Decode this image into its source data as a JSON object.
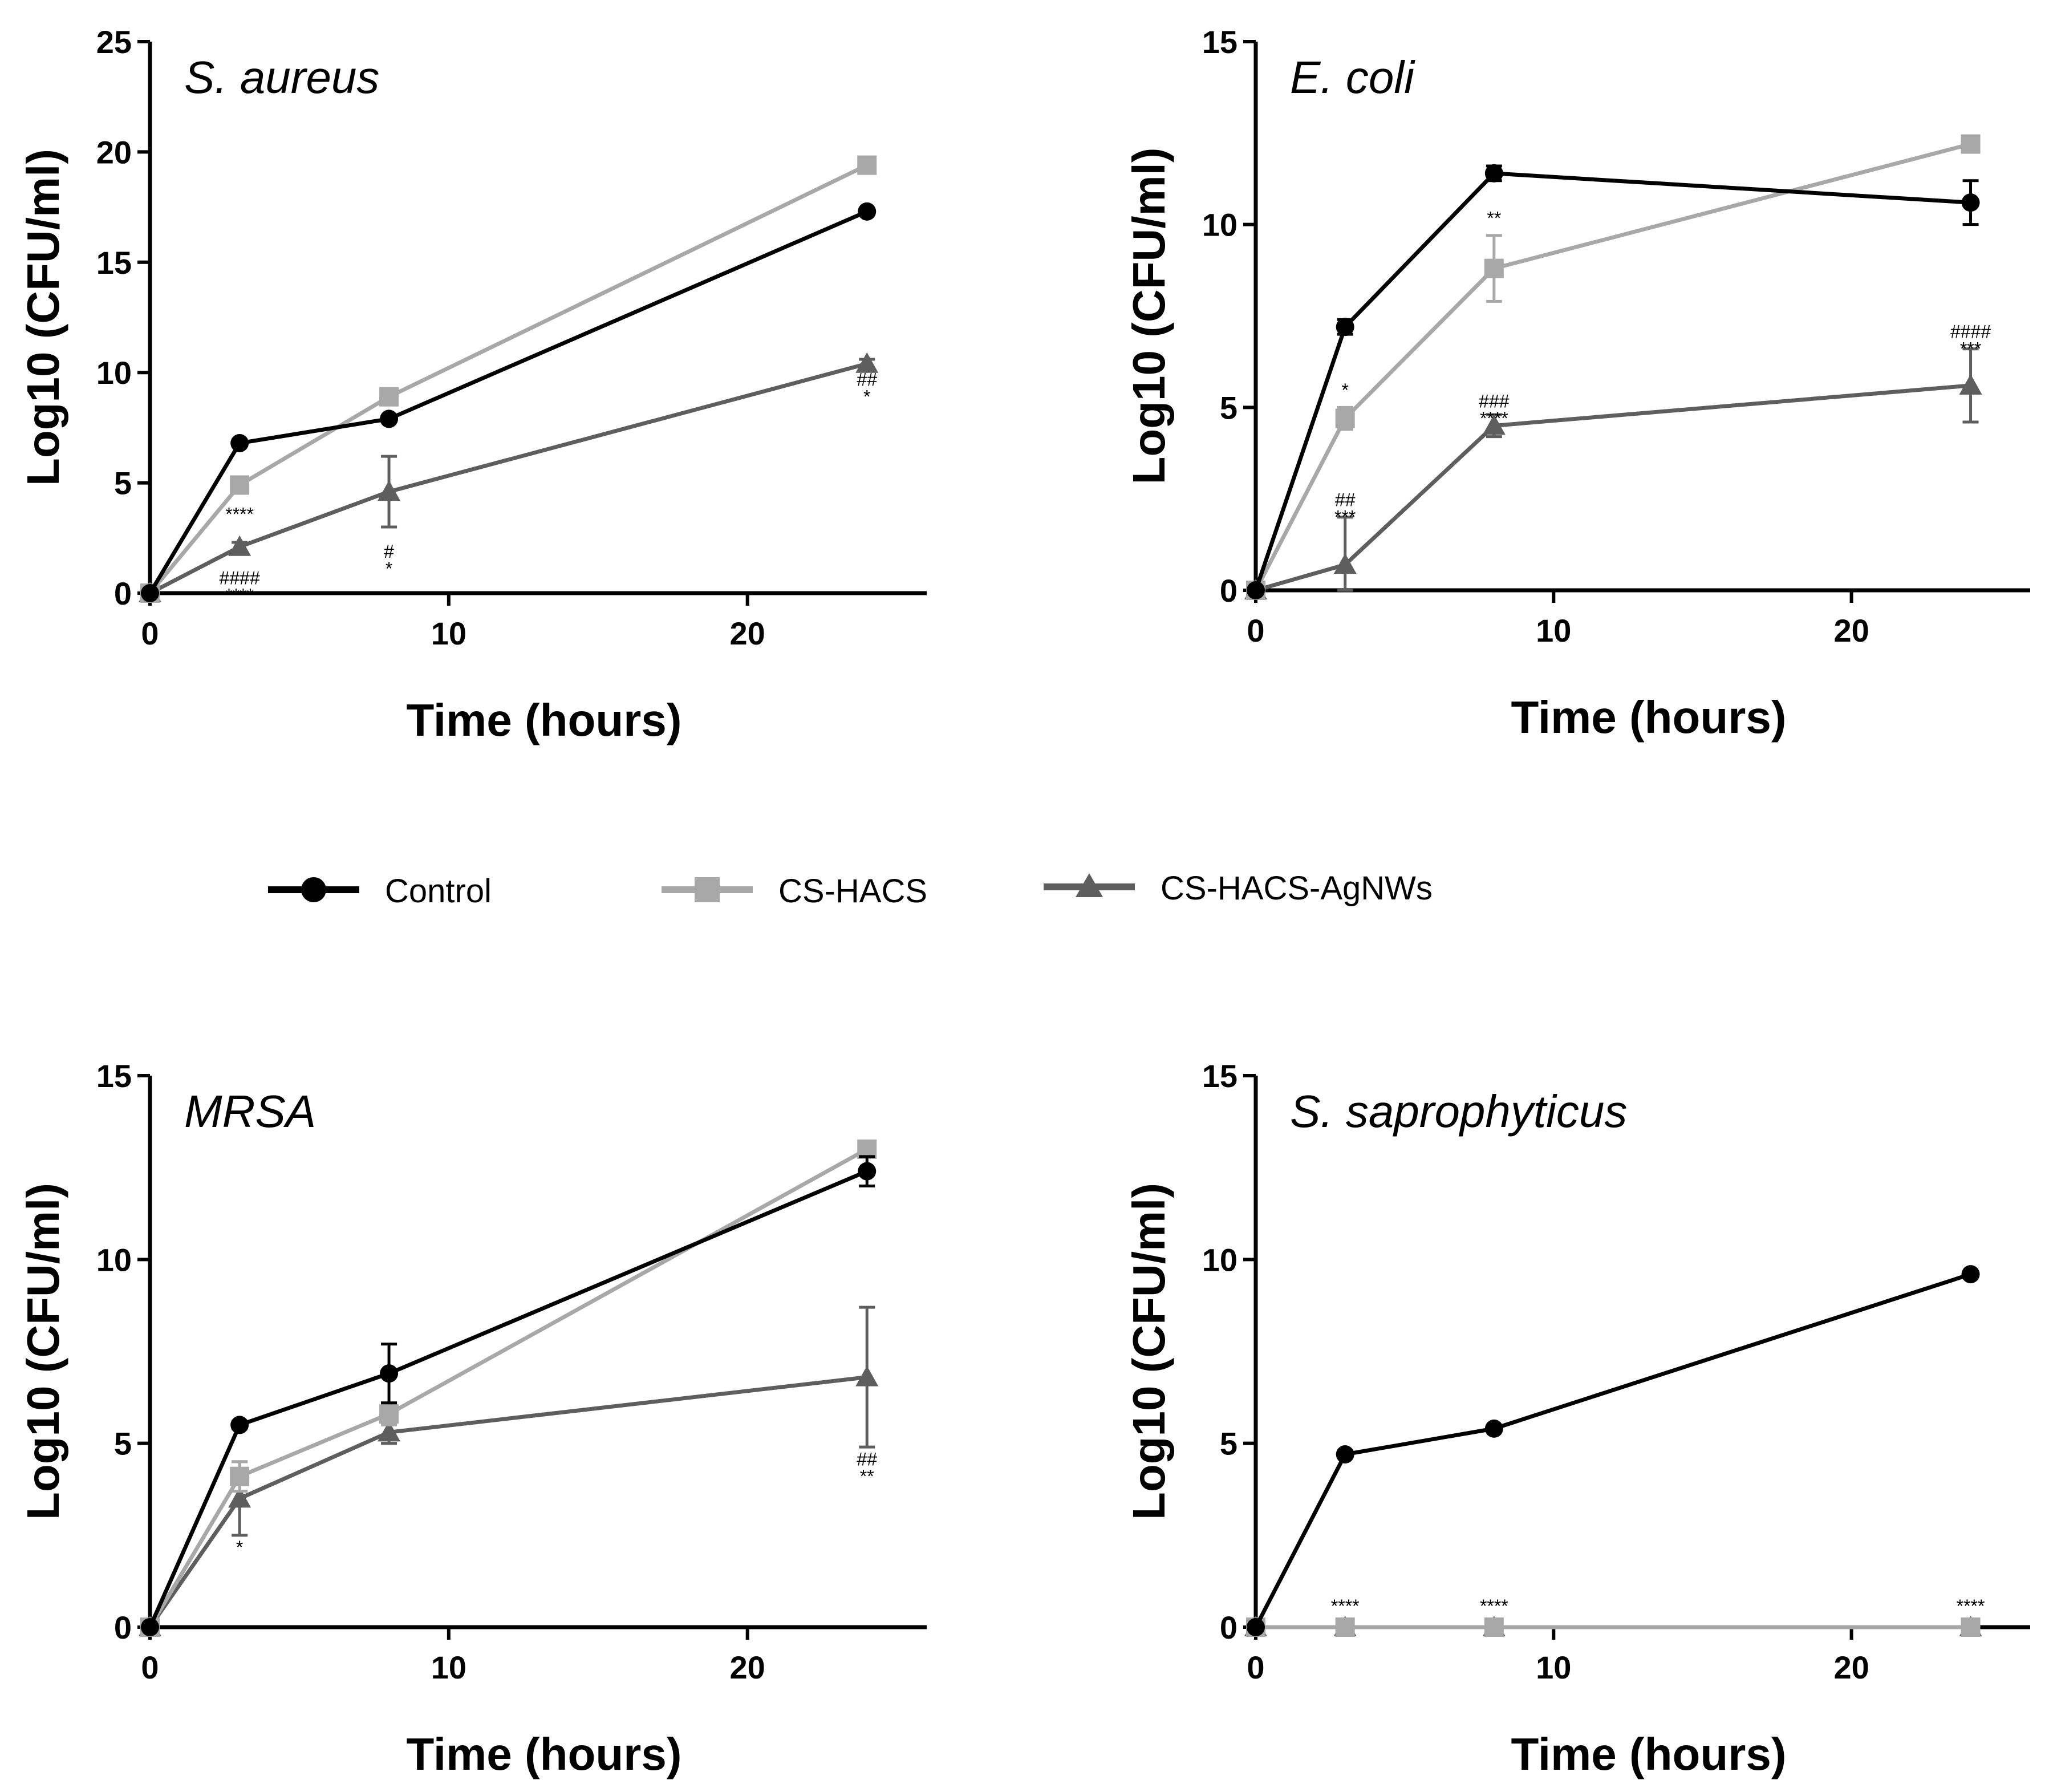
{
  "legend": {
    "items": [
      {
        "label": "Control",
        "color": "#000000",
        "marker": "circle"
      },
      {
        "label": "CS-HACS",
        "color": "#a8a8a8",
        "marker": "square"
      },
      {
        "label": "CS-HACS-AgNWs",
        "color": "#5e5e5e",
        "marker": "triangle"
      }
    ]
  },
  "chart_data": [
    {
      "type": "line",
      "title": "S. aureus",
      "xlabel": "Time (hours)",
      "ylabel": "Log10 (CFU/ml)",
      "xlim": [
        0,
        26
      ],
      "ylim": [
        0,
        25
      ],
      "xticks": [
        0,
        10,
        20
      ],
      "yticks": [
        0,
        5,
        10,
        15,
        20,
        25
      ],
      "x": [
        0,
        3,
        8,
        24
      ],
      "series": [
        {
          "name": "Control",
          "values": [
            0,
            6.8,
            7.9,
            17.3
          ],
          "errors": [
            0,
            0.1,
            0.1,
            0.1
          ]
        },
        {
          "name": "CS-HACS",
          "values": [
            0,
            4.9,
            8.9,
            19.4
          ],
          "errors": [
            0,
            0.3,
            0.2,
            0.2
          ]
        },
        {
          "name": "CS-HACS-AgNWs",
          "values": [
            0,
            2.1,
            4.6,
            10.4
          ],
          "errors": [
            0,
            0.2,
            1.6,
            0.2
          ]
        }
      ],
      "annotations": [
        {
          "x": 3,
          "value": 3.3,
          "lines": [
            "****"
          ]
        },
        {
          "x": 3,
          "value": 0.4,
          "lines": [
            "####",
            "****"
          ]
        },
        {
          "x": 8,
          "value": 1.6,
          "lines": [
            "#",
            "*"
          ]
        },
        {
          "x": 24,
          "value": 9.4,
          "lines": [
            "##",
            "*"
          ]
        }
      ]
    },
    {
      "type": "line",
      "title": "E. coli",
      "xlabel": "Time (hours)",
      "ylabel": "Log10 (CFU/ml)",
      "xlim": [
        0,
        26
      ],
      "ylim": [
        0,
        15
      ],
      "xticks": [
        0,
        10,
        20
      ],
      "yticks": [
        0,
        5,
        10,
        15
      ],
      "x": [
        0,
        3,
        8,
        24
      ],
      "series": [
        {
          "name": "Control",
          "values": [
            0,
            7.2,
            11.4,
            10.6
          ],
          "errors": [
            0,
            0.2,
            0.2,
            0.6
          ]
        },
        {
          "name": "CS-HACS",
          "values": [
            0,
            4.7,
            8.8,
            12.2
          ],
          "errors": [
            0,
            0.3,
            0.9,
            0.15
          ]
        },
        {
          "name": "CS-HACS-AgNWs",
          "values": [
            0,
            0.7,
            4.5,
            5.6
          ],
          "errors": [
            0,
            1.3,
            0.3,
            1.0
          ]
        }
      ],
      "annotations": [
        {
          "x": 3,
          "value": 5.3,
          "lines": [
            "*"
          ]
        },
        {
          "x": 3,
          "value": 2.3,
          "lines": [
            "##",
            "***"
          ]
        },
        {
          "x": 8,
          "value": 10.0,
          "lines": [
            "**"
          ]
        },
        {
          "x": 8,
          "value": 5.0,
          "lines": [
            "###",
            "****"
          ]
        },
        {
          "x": 24,
          "value": 6.9,
          "lines": [
            "####",
            "***"
          ]
        }
      ]
    },
    {
      "type": "line",
      "title": "MRSA",
      "xlabel": "Time (hours)",
      "ylabel": "Log10 (CFU/ml)",
      "xlim": [
        0,
        26
      ],
      "ylim": [
        0,
        15
      ],
      "xticks": [
        0,
        10,
        20
      ],
      "yticks": [
        0,
        5,
        10,
        15
      ],
      "x": [
        0,
        3,
        8,
        24
      ],
      "series": [
        {
          "name": "Control",
          "values": [
            0,
            5.5,
            6.9,
            12.4
          ],
          "errors": [
            0,
            0.1,
            0.8,
            0.4
          ]
        },
        {
          "name": "CS-HACS",
          "values": [
            0,
            4.1,
            5.8,
            13.0
          ],
          "errors": [
            0,
            0.4,
            0.3,
            0.2
          ]
        },
        {
          "name": "CS-HACS-AgNWs",
          "values": [
            0,
            3.5,
            5.3,
            6.8
          ],
          "errors": [
            0,
            1.0,
            0.3,
            1.9
          ]
        }
      ],
      "annotations": [
        {
          "x": 3,
          "value": 2.0,
          "lines": [
            "*"
          ]
        },
        {
          "x": 24,
          "value": 4.4,
          "lines": [
            "##",
            "**"
          ]
        }
      ]
    },
    {
      "type": "line",
      "title": "S. saprophyticus",
      "xlabel": "Time (hours)",
      "ylabel": "Log10 (CFU/ml)",
      "xlim": [
        0,
        26
      ],
      "ylim": [
        0,
        15
      ],
      "xticks": [
        0,
        10,
        20
      ],
      "yticks": [
        0,
        5,
        10,
        15
      ],
      "x": [
        0,
        3,
        8,
        24
      ],
      "series": [
        {
          "name": "Control",
          "values": [
            0,
            4.7,
            5.4,
            9.6
          ],
          "errors": [
            0,
            0,
            0,
            0
          ]
        },
        {
          "name": "CS-HACS",
          "values": [
            0,
            0,
            0,
            0
          ],
          "errors": [
            0,
            0,
            0,
            0
          ]
        },
        {
          "name": "CS-HACS-AgNWs",
          "values": [
            0,
            0,
            0,
            0
          ],
          "errors": [
            0,
            0,
            0,
            0
          ]
        }
      ],
      "annotations": [
        {
          "x": 3,
          "value": 0.4,
          "lines": [
            "****"
          ]
        },
        {
          "x": 8,
          "value": 0.4,
          "lines": [
            "****"
          ]
        },
        {
          "x": 24,
          "value": 0.4,
          "lines": [
            "****"
          ]
        }
      ]
    }
  ]
}
